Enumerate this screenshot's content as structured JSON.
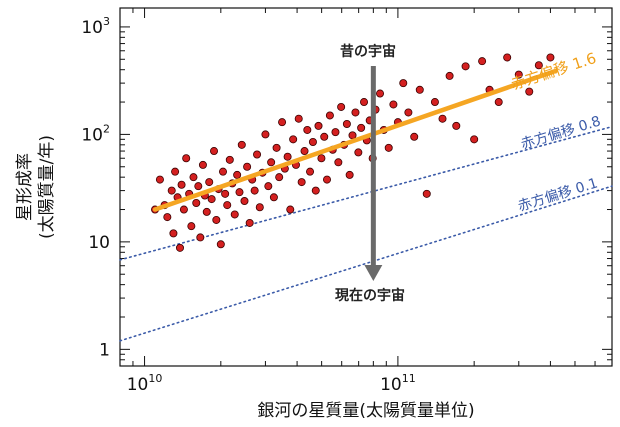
{
  "chart_data": {
    "type": "scatter",
    "xlabel": "銀河の星質量(太陽質量単位)",
    "ylabel_line1": "星形成率",
    "ylabel_line2": "(太陽質量/年)",
    "x_scale": "log",
    "y_scale": "log",
    "xlim": [
      8000000000,
      700000000000
    ],
    "ylim": [
      0.7,
      1500
    ],
    "x_ticks": [
      {
        "value": 10000000000,
        "base": "10",
        "exp": "10"
      },
      {
        "value": 100000000000,
        "base": "10",
        "exp": "11"
      }
    ],
    "y_ticks": [
      {
        "value": 1,
        "base": "1",
        "exp": ""
      },
      {
        "value": 10,
        "base": "10",
        "exp": ""
      },
      {
        "value": 100,
        "base": "10",
        "exp": "2"
      },
      {
        "value": 1000,
        "base": "10",
        "exp": "3"
      }
    ],
    "grid": false,
    "colors": {
      "points": "#d42020",
      "points_edge": "#3a0000",
      "fit_line": "#f5a623",
      "dotted": "#3a5aa8",
      "arrow": "#6a6a6a"
    },
    "annotations": {
      "past": "昔の宇宙",
      "present": "現在の宇宙",
      "arrow_x": 80000000000,
      "arrow_y_from": 800,
      "arrow_y_to": 3.5
    },
    "series": [
      {
        "name": "赤方偏移 1.6",
        "kind": "line",
        "x": [
          11000000000,
          420000000000
        ],
        "y": [
          20,
          390
        ]
      },
      {
        "name": "赤方偏移 0.8",
        "kind": "dotted",
        "x": [
          8000000000,
          700000000000
        ],
        "y": [
          6.8,
          118
        ]
      },
      {
        "name": "赤方偏移 0.1",
        "kind": "dotted",
        "x": [
          8000000000,
          700000000000
        ],
        "y": [
          1.2,
          33
        ]
      }
    ],
    "points": [
      {
        "x": 11000000000,
        "y": 20
      },
      {
        "x": 11500000000,
        "y": 38
      },
      {
        "x": 12000000000,
        "y": 22
      },
      {
        "x": 12300000000,
        "y": 17
      },
      {
        "x": 12800000000,
        "y": 30
      },
      {
        "x": 13000000000,
        "y": 12
      },
      {
        "x": 13200000000,
        "y": 45
      },
      {
        "x": 13500000000,
        "y": 26
      },
      {
        "x": 13800000000,
        "y": 8.8
      },
      {
        "x": 14000000000,
        "y": 34
      },
      {
        "x": 14300000000,
        "y": 20
      },
      {
        "x": 14600000000,
        "y": 60
      },
      {
        "x": 15000000000,
        "y": 28
      },
      {
        "x": 15300000000,
        "y": 14
      },
      {
        "x": 15600000000,
        "y": 40
      },
      {
        "x": 16000000000,
        "y": 23
      },
      {
        "x": 16300000000,
        "y": 33
      },
      {
        "x": 16600000000,
        "y": 11
      },
      {
        "x": 17000000000,
        "y": 52
      },
      {
        "x": 17300000000,
        "y": 27
      },
      {
        "x": 17600000000,
        "y": 19
      },
      {
        "x": 18000000000,
        "y": 36
      },
      {
        "x": 18400000000,
        "y": 25
      },
      {
        "x": 18800000000,
        "y": 70
      },
      {
        "x": 19200000000,
        "y": 16
      },
      {
        "x": 19600000000,
        "y": 31
      },
      {
        "x": 20000000000,
        "y": 9.5
      },
      {
        "x": 20400000000,
        "y": 45
      },
      {
        "x": 20800000000,
        "y": 28
      },
      {
        "x": 21200000000,
        "y": 22
      },
      {
        "x": 21700000000,
        "y": 58
      },
      {
        "x": 22200000000,
        "y": 35
      },
      {
        "x": 22700000000,
        "y": 18
      },
      {
        "x": 23200000000,
        "y": 42
      },
      {
        "x": 23700000000,
        "y": 29
      },
      {
        "x": 24200000000,
        "y": 80
      },
      {
        "x": 24800000000,
        "y": 24
      },
      {
        "x": 25400000000,
        "y": 50
      },
      {
        "x": 26000000000,
        "y": 15
      },
      {
        "x": 26600000000,
        "y": 38
      },
      {
        "x": 27200000000,
        "y": 30
      },
      {
        "x": 27800000000,
        "y": 65
      },
      {
        "x": 28500000000,
        "y": 21
      },
      {
        "x": 29200000000,
        "y": 44
      },
      {
        "x": 30000000000,
        "y": 100
      },
      {
        "x": 30800000000,
        "y": 33
      },
      {
        "x": 31600000000,
        "y": 55
      },
      {
        "x": 32400000000,
        "y": 26
      },
      {
        "x": 33200000000,
        "y": 75
      },
      {
        "x": 34000000000,
        "y": 40
      },
      {
        "x": 34900000000,
        "y": 130
      },
      {
        "x": 35800000000,
        "y": 48
      },
      {
        "x": 36700000000,
        "y": 62
      },
      {
        "x": 37600000000,
        "y": 20
      },
      {
        "x": 38600000000,
        "y": 90
      },
      {
        "x": 39600000000,
        "y": 52
      },
      {
        "x": 40600000000,
        "y": 140
      },
      {
        "x": 41700000000,
        "y": 36
      },
      {
        "x": 42800000000,
        "y": 70
      },
      {
        "x": 43900000000,
        "y": 110
      },
      {
        "x": 45000000000,
        "y": 45
      },
      {
        "x": 46200000000,
        "y": 85
      },
      {
        "x": 47400000000,
        "y": 30
      },
      {
        "x": 48600000000,
        "y": 120
      },
      {
        "x": 49900000000,
        "y": 60
      },
      {
        "x": 51200000000,
        "y": 95
      },
      {
        "x": 52500000000,
        "y": 38
      },
      {
        "x": 53900000000,
        "y": 150
      },
      {
        "x": 55300000000,
        "y": 72
      },
      {
        "x": 56700000000,
        "y": 105
      },
      {
        "x": 58200000000,
        "y": 55
      },
      {
        "x": 59700000000,
        "y": 180
      },
      {
        "x": 61300000000,
        "y": 80
      },
      {
        "x": 62900000000,
        "y": 125
      },
      {
        "x": 64500000000,
        "y": 42
      },
      {
        "x": 66200000000,
        "y": 98
      },
      {
        "x": 68000000000,
        "y": 160
      },
      {
        "x": 69800000000,
        "y": 68
      },
      {
        "x": 71600000000,
        "y": 115
      },
      {
        "x": 73500000000,
        "y": 200
      },
      {
        "x": 75400000000,
        "y": 88
      },
      {
        "x": 77400000000,
        "y": 135
      },
      {
        "x": 79500000000,
        "y": 60
      },
      {
        "x": 81600000000,
        "y": 170
      },
      {
        "x": 85000000000,
        "y": 240
      },
      {
        "x": 88000000000,
        "y": 110
      },
      {
        "x": 92000000000,
        "y": 75
      },
      {
        "x": 96000000000,
        "y": 190
      },
      {
        "x": 100000000000,
        "y": 130
      },
      {
        "x": 105000000000,
        "y": 300
      },
      {
        "x": 110000000000,
        "y": 160
      },
      {
        "x": 116000000000,
        "y": 95
      },
      {
        "x": 122000000000,
        "y": 260
      },
      {
        "x": 130000000000,
        "y": 28
      },
      {
        "x": 140000000000,
        "y": 200
      },
      {
        "x": 150000000000,
        "y": 140
      },
      {
        "x": 160000000000,
        "y": 350
      },
      {
        "x": 170000000000,
        "y": 120
      },
      {
        "x": 185000000000,
        "y": 430
      },
      {
        "x": 200000000000,
        "y": 90
      },
      {
        "x": 215000000000,
        "y": 480
      },
      {
        "x": 230000000000,
        "y": 260
      },
      {
        "x": 250000000000,
        "y": 200
      },
      {
        "x": 270000000000,
        "y": 520
      },
      {
        "x": 300000000000,
        "y": 360
      },
      {
        "x": 330000000000,
        "y": 250
      },
      {
        "x": 360000000000,
        "y": 440
      },
      {
        "x": 400000000000,
        "y": 520
      }
    ]
  }
}
